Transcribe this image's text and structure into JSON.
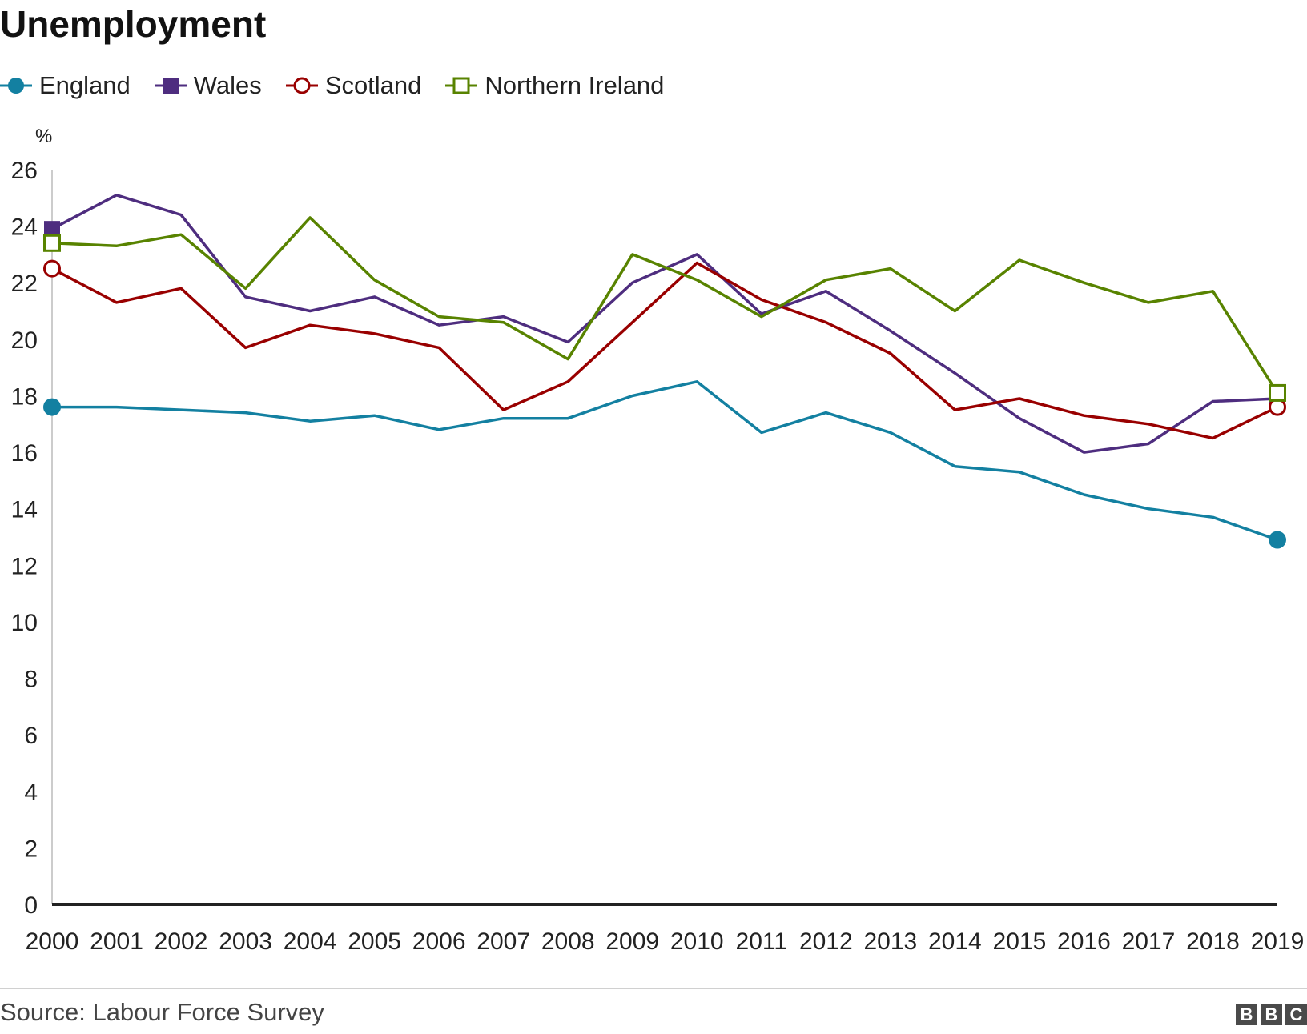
{
  "title": "Unemployment",
  "source": "Source: Labour Force Survey",
  "logo_letters": [
    "B",
    "B",
    "C"
  ],
  "colors": {
    "England": "#1380A1",
    "Wales": "#4E2D7F",
    "Scotland": "#990000",
    "Northern Ireland": "#588300",
    "axis": "#222222",
    "gridline": "#cccccc"
  },
  "chart_data": {
    "type": "line",
    "title": "Unemployment",
    "ylabel": "%",
    "xlabel": "",
    "ylim": [
      0,
      26
    ],
    "yticks": [
      0,
      2,
      4,
      6,
      8,
      10,
      12,
      14,
      16,
      18,
      20,
      22,
      24,
      26
    ],
    "grid": false,
    "legend_position": "top-left",
    "x": [
      "2000",
      "2001",
      "2002",
      "2003",
      "2004",
      "2005",
      "2006",
      "2007",
      "2008",
      "2009",
      "2010",
      "2011",
      "2012",
      "2013",
      "2014",
      "2015",
      "2016",
      "2017",
      "2018",
      "2019"
    ],
    "series": [
      {
        "name": "England",
        "marker": "filled-circle",
        "values": [
          17.6,
          17.6,
          17.5,
          17.4,
          17.1,
          17.3,
          16.8,
          17.2,
          17.2,
          18.0,
          18.5,
          16.7,
          17.4,
          16.7,
          15.5,
          15.3,
          14.5,
          14.0,
          13.7,
          12.9
        ]
      },
      {
        "name": "Wales",
        "marker": "filled-square",
        "values": [
          23.9,
          25.1,
          24.4,
          21.5,
          21.0,
          21.5,
          20.5,
          20.8,
          19.9,
          22.0,
          23.0,
          20.9,
          21.7,
          20.3,
          18.8,
          17.2,
          16.0,
          16.3,
          17.8,
          17.9
        ]
      },
      {
        "name": "Scotland",
        "marker": "open-circle",
        "values": [
          22.5,
          21.3,
          21.8,
          19.7,
          20.5,
          20.2,
          19.7,
          17.5,
          18.5,
          20.6,
          22.7,
          21.4,
          20.6,
          19.5,
          17.5,
          17.9,
          17.3,
          17.0,
          16.5,
          17.6
        ]
      },
      {
        "name": "Northern Ireland",
        "marker": "open-square",
        "values": [
          23.4,
          23.3,
          23.7,
          21.8,
          24.3,
          22.1,
          20.8,
          20.6,
          19.3,
          23.0,
          22.1,
          20.8,
          22.1,
          22.5,
          21.0,
          22.8,
          22.0,
          21.3,
          21.7,
          18.1
        ]
      }
    ]
  }
}
